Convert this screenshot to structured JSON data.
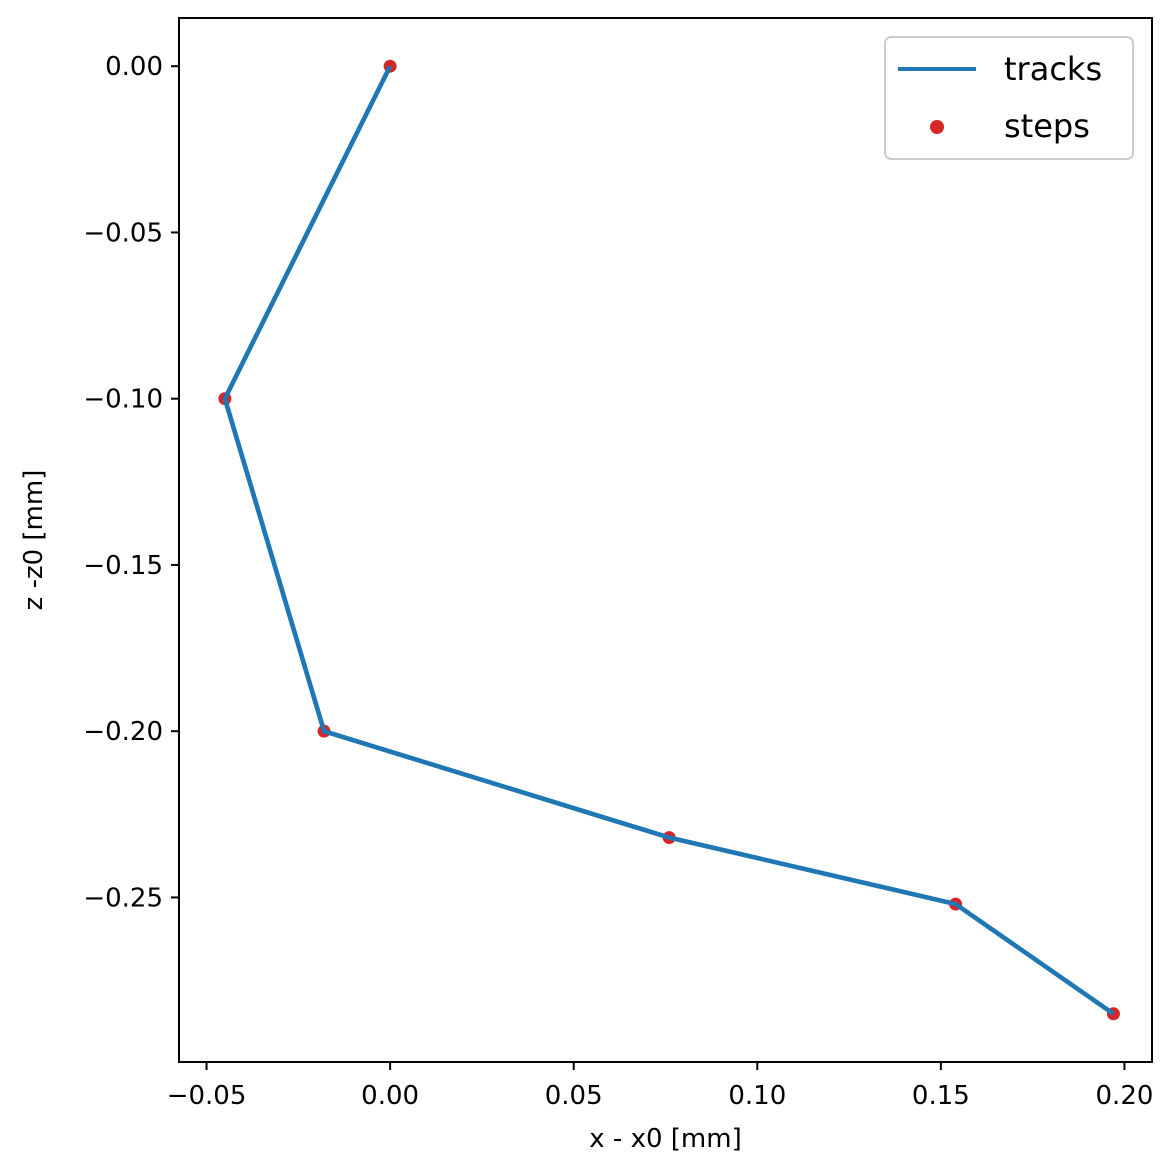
{
  "chart_data": {
    "type": "line",
    "xlabel": "x - x0 [mm]",
    "ylabel": "z -z0 [mm]",
    "xlim": [
      -0.0575,
      0.2075
    ],
    "ylim": [
      -0.2995,
      0.0145
    ],
    "xticks": [
      -0.05,
      0.0,
      0.05,
      0.1,
      0.15,
      0.2
    ],
    "xtick_labels": [
      "−0.05",
      "0.00",
      "0.05",
      "0.10",
      "0.15",
      "0.20"
    ],
    "yticks": [
      0.0,
      -0.05,
      -0.1,
      -0.15,
      -0.2,
      -0.25
    ],
    "ytick_labels": [
      "0.00",
      "−0.05",
      "−0.10",
      "−0.15",
      "−0.20",
      "−0.25"
    ],
    "grid": false,
    "legend_position": "top-right",
    "series": [
      {
        "name": "tracks",
        "kind": "line",
        "color": "#1f77b4",
        "x": [
          0.0,
          -0.045,
          -0.018,
          0.076,
          0.154,
          0.197
        ],
        "y": [
          0.0,
          -0.1,
          -0.2,
          -0.232,
          -0.252,
          -0.285
        ]
      },
      {
        "name": "steps",
        "kind": "scatter",
        "color": "#d62728",
        "x": [
          0.0,
          -0.045,
          -0.018,
          0.076,
          0.154,
          0.197
        ],
        "y": [
          0.0,
          -0.1,
          -0.2,
          -0.232,
          -0.252,
          -0.285
        ]
      }
    ]
  }
}
